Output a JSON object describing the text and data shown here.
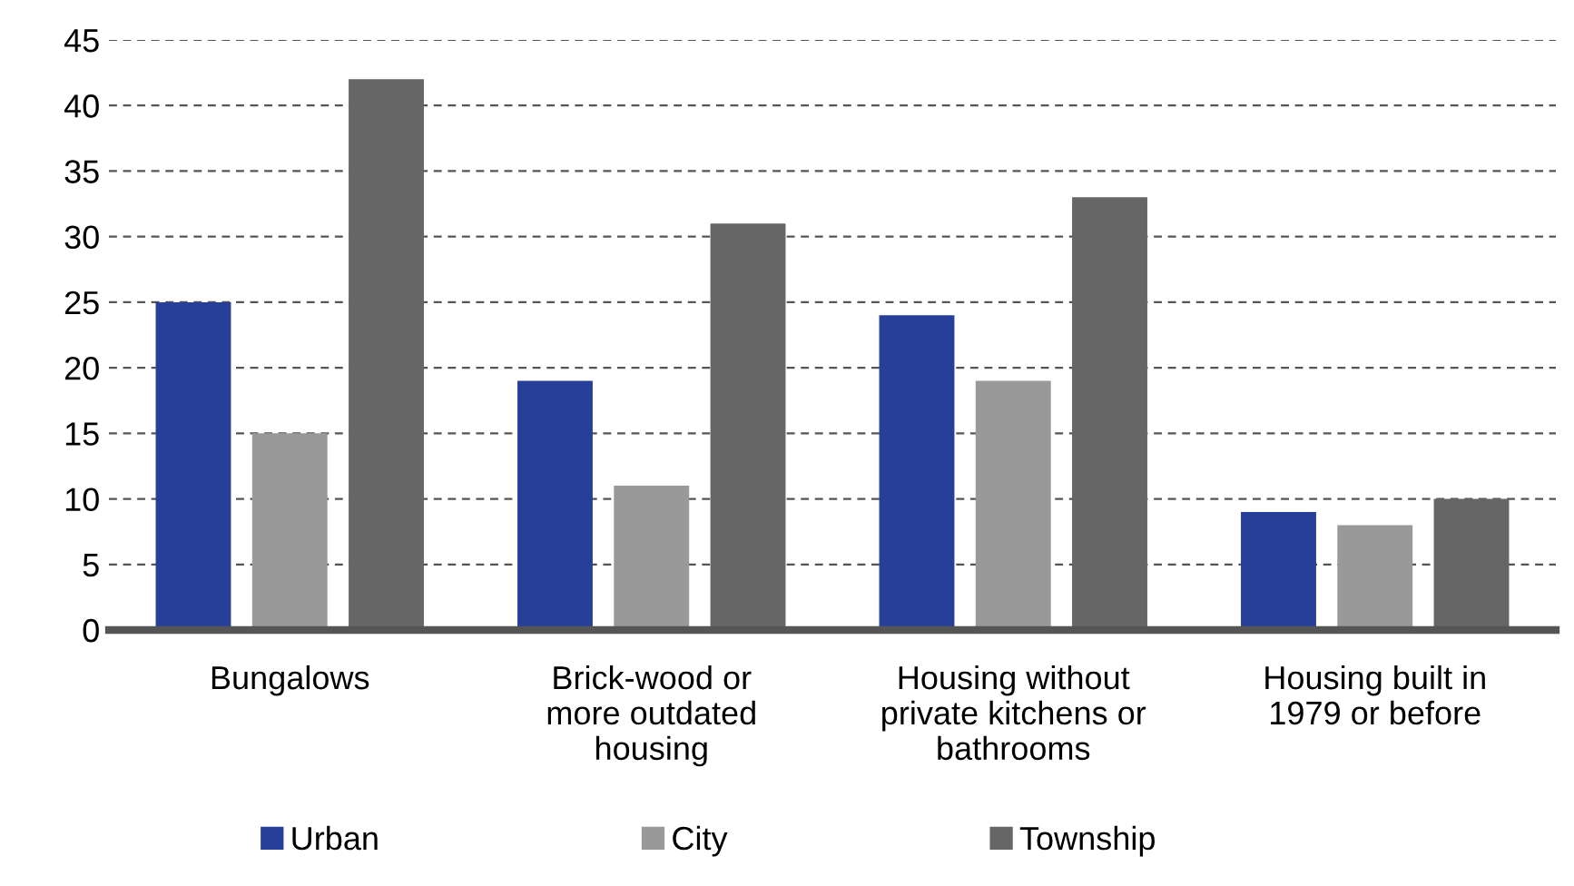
{
  "chart_data": {
    "type": "bar",
    "categories": [
      "Bungalows",
      "Brick-wood or\nmore outdated\nhousing",
      "Housing without\nprivate kitchens or\nbathrooms",
      "Housing built in\n1979 or before"
    ],
    "series": [
      {
        "name": "Urban",
        "color": "#26409a",
        "values": [
          25,
          19,
          24,
          9
        ]
      },
      {
        "name": "City",
        "color": "#999999",
        "values": [
          15,
          11,
          19,
          8
        ]
      },
      {
        "name": "Township",
        "color": "#666666",
        "values": [
          42,
          31,
          33,
          10
        ]
      }
    ],
    "ylim": [
      0,
      45
    ],
    "yticks": [
      0,
      5,
      10,
      15,
      20,
      25,
      30,
      35,
      40,
      45
    ],
    "grid": "y",
    "legend": "bottom"
  }
}
